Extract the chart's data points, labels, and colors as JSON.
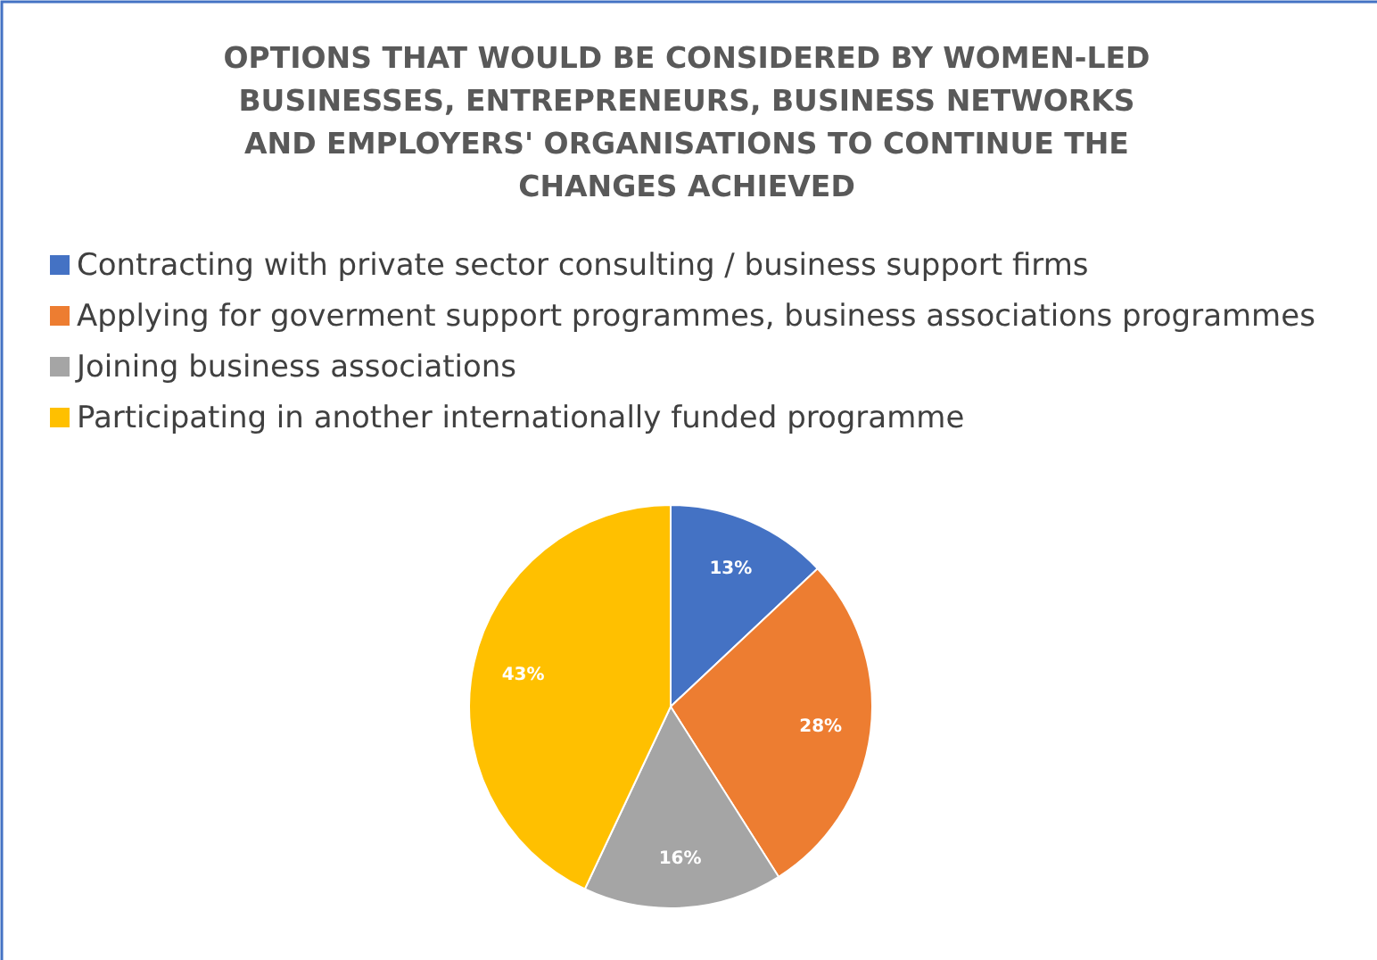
{
  "chart_data": {
    "type": "pie",
    "title": "OPTIONS THAT WOULD BE CONSIDERED BY WOMEN-LED BUSINESSES, ENTREPRENEURS, BUSINESS NETWORKS AND EMPLOYERS' ORGANISATIONS TO CONTINUE THE CHANGES ACHIEVED",
    "categories": [
      "Contracting with private sector consulting / business support firms",
      "Applying for goverment support programmes, business associations programmes",
      " Joining business associations",
      "Participating in another internationally funded programme"
    ],
    "values": [
      13,
      28,
      16,
      43
    ],
    "colors": [
      "#4472c4",
      "#ed7d31",
      "#a5a5a5",
      "#ffc000"
    ],
    "value_labels": [
      "13%",
      "28%",
      "16%",
      "43%"
    ],
    "legend": "top"
  }
}
